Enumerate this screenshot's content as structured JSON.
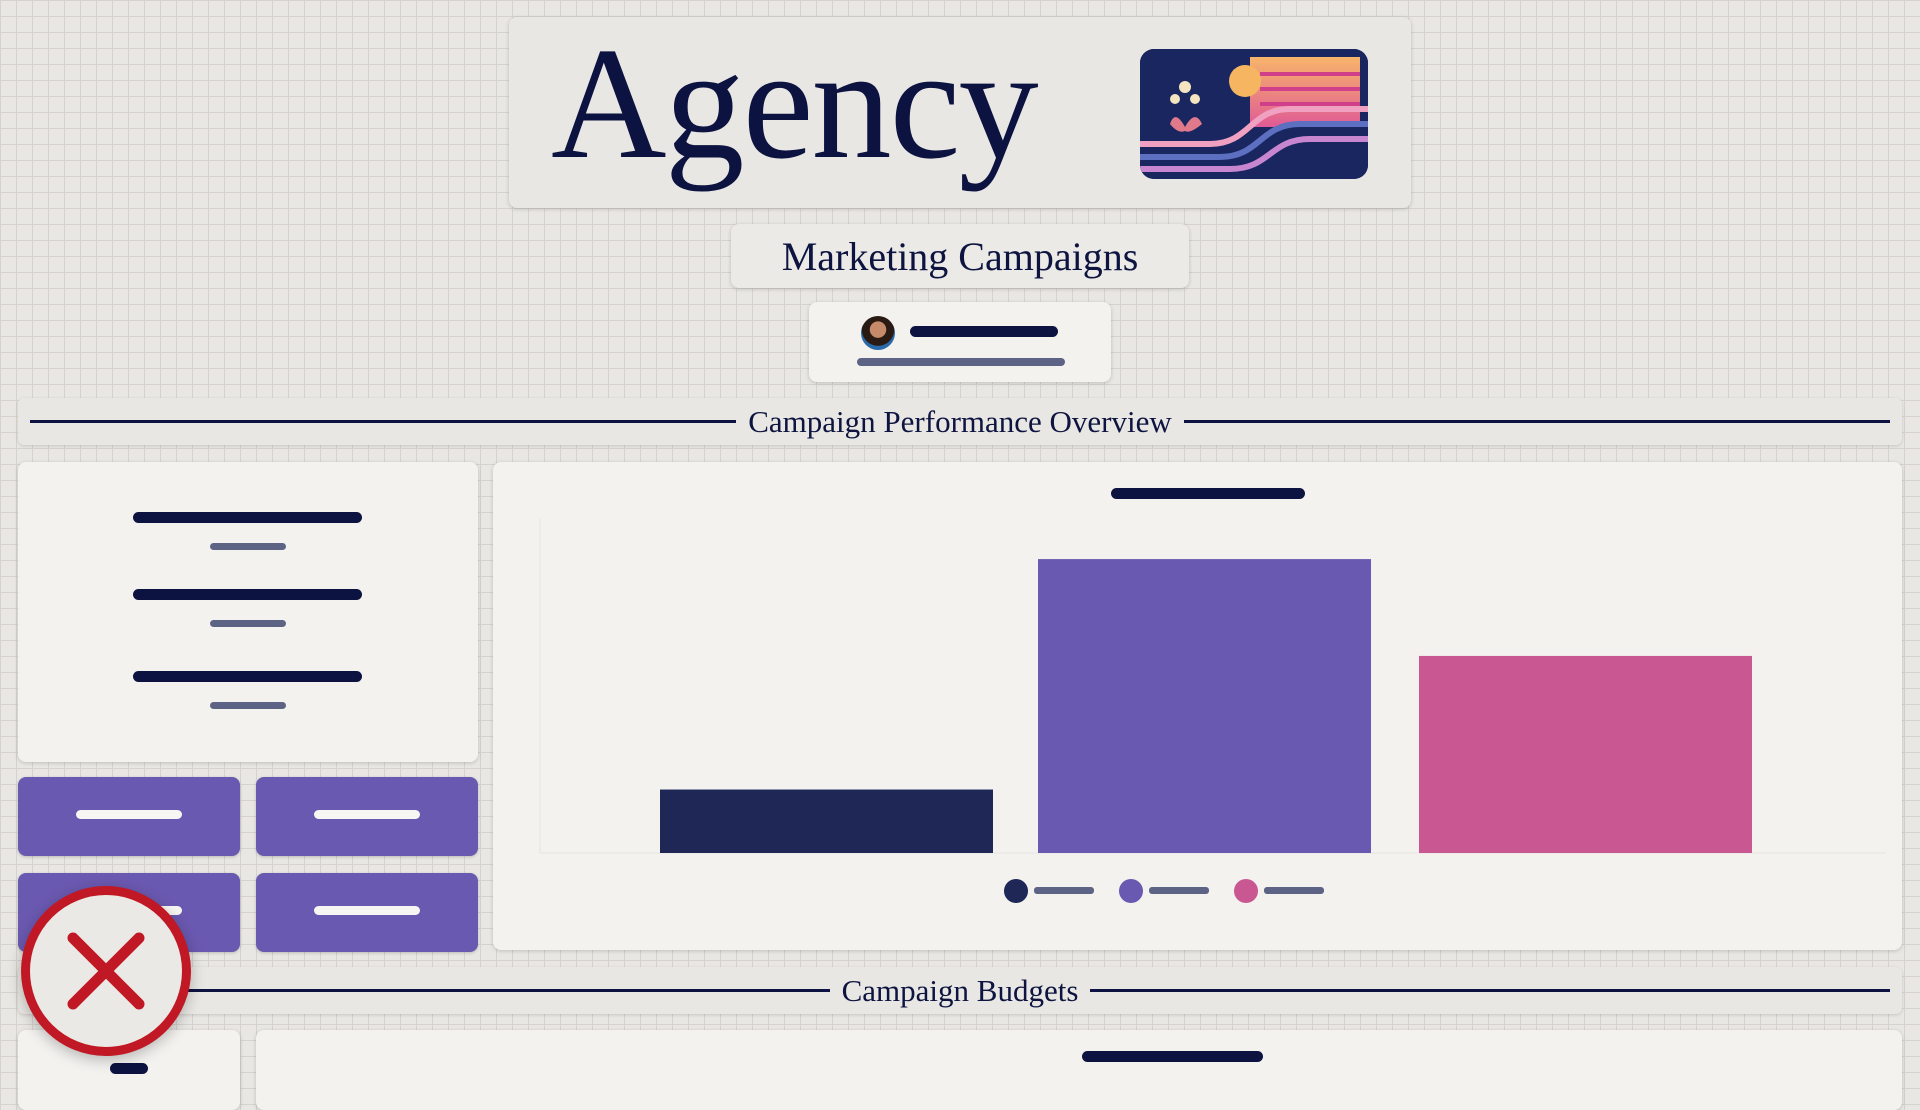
{
  "header": {
    "title": "Agency",
    "logo": "sunset-wave-logo"
  },
  "subtitle": "Marketing Campaigns",
  "user": {
    "avatar": "user-avatar"
  },
  "sections": {
    "performance": "Campaign Performance Overview",
    "budgets": "Campaign Budgets"
  },
  "colors": {
    "navy": "#1e2756",
    "purple": "#6a59b0",
    "pink": "#c95892",
    "button": "#6a59b0",
    "close": "#c01824"
  },
  "chart_data": {
    "type": "bar",
    "categories": [
      "",
      "",
      ""
    ],
    "values": [
      19,
      88,
      59
    ],
    "ylim": [
      0,
      100
    ],
    "colors": [
      "#1e2756",
      "#6a59b0",
      "#c95892"
    ],
    "grid": false,
    "legend": "bottom"
  },
  "close_icon": "close-x-icon"
}
